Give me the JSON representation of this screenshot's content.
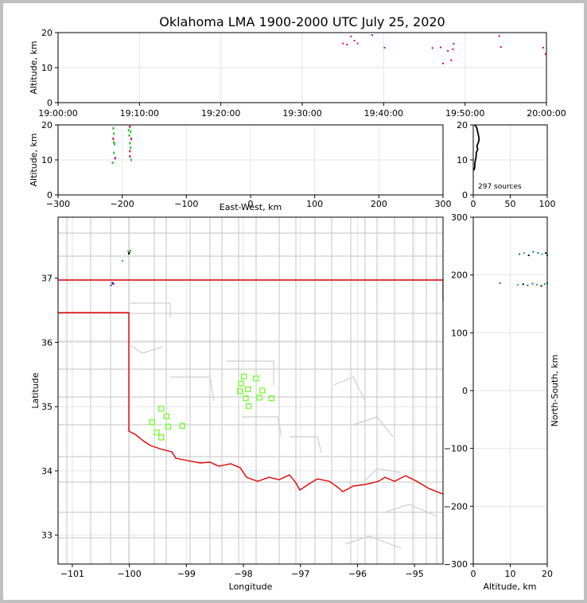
{
  "chart_data": {
    "type": "scatter",
    "title": "Oklahoma LMA 1900-2000 UTC July 25, 2020",
    "colors": {
      "early": "#22c01e",
      "late": "#e0004e",
      "mid": "#6a00b0",
      "border": "#e00000",
      "station": "#7cfc3c",
      "county": "#cfcfcf"
    },
    "panels": {
      "time_altitude": {
        "ylabel": "Altitude, km",
        "ylim": [
          0,
          20
        ],
        "yticks": [
          "0",
          "10",
          "20"
        ],
        "xticks": [
          "19:00:00",
          "19:10:00",
          "19:20:00",
          "19:30:00",
          "19:40:00",
          "19:50:00",
          "20:00:00"
        ],
        "points": [
          {
            "t": 35.0,
            "alt": 16.9
          },
          {
            "t": 35.5,
            "alt": 16.6
          },
          {
            "t": 36.0,
            "alt": 18.9
          },
          {
            "t": 36.4,
            "alt": 17.7
          },
          {
            "t": 36.8,
            "alt": 16.9
          },
          {
            "t": 38.6,
            "alt": 19.3
          },
          {
            "t": 40.1,
            "alt": 15.7
          },
          {
            "t": 46.0,
            "alt": 15.6
          },
          {
            "t": 47.0,
            "alt": 15.8
          },
          {
            "t": 47.3,
            "alt": 11.2
          },
          {
            "t": 47.9,
            "alt": 14.8
          },
          {
            "t": 48.3,
            "alt": 12.1
          },
          {
            "t": 48.5,
            "alt": 15.2
          },
          {
            "t": 48.6,
            "alt": 16.8
          },
          {
            "t": 54.2,
            "alt": 19.0
          },
          {
            "t": 54.4,
            "alt": 15.9
          },
          {
            "t": 59.6,
            "alt": 15.7
          },
          {
            "t": 59.9,
            "alt": 13.9
          }
        ]
      },
      "ew_altitude": {
        "xlabel": "East-West, km",
        "ylabel": "Altitude, km",
        "xlim": [
          -300,
          300
        ],
        "ylim": [
          0,
          20
        ],
        "xticks": [
          "−300",
          "−200",
          "−100",
          "0",
          "100",
          "200",
          "300"
        ],
        "yticks": [
          "0",
          "10",
          "20"
        ],
        "points": [
          {
            "x": -214,
            "alt": 19.0
          },
          {
            "x": -213,
            "alt": 17.5
          },
          {
            "x": -214,
            "alt": 16.0
          },
          {
            "x": -212,
            "alt": 14.5
          },
          {
            "x": -213,
            "alt": 12.0
          },
          {
            "x": -211,
            "alt": 10.5
          },
          {
            "x": -215,
            "alt": 9.2
          },
          {
            "x": -213,
            "alt": 15.0
          },
          {
            "x": -188,
            "alt": 19.5
          },
          {
            "x": -187,
            "alt": 18.0
          },
          {
            "x": -189,
            "alt": 17.0
          },
          {
            "x": -186,
            "alt": 16.0
          },
          {
            "x": -188,
            "alt": 14.8
          },
          {
            "x": -187,
            "alt": 13.5
          },
          {
            "x": -188,
            "alt": 11.0
          },
          {
            "x": -186,
            "alt": 10.0
          },
          {
            "x": -190,
            "alt": 18.5
          },
          {
            "x": -188,
            "alt": 12.5
          }
        ]
      },
      "histogram": {
        "xlim": [
          0,
          100
        ],
        "ylim": [
          0,
          20
        ],
        "xticks": [
          "0",
          "50",
          "100"
        ],
        "yticks": [
          "0",
          "10",
          "20"
        ],
        "source_count": "297 sources",
        "profile": [
          {
            "alt": 7,
            "count": 1
          },
          {
            "alt": 8,
            "count": 2
          },
          {
            "alt": 9,
            "count": 2
          },
          {
            "alt": 10,
            "count": 3
          },
          {
            "alt": 11,
            "count": 4
          },
          {
            "alt": 12,
            "count": 4
          },
          {
            "alt": 13,
            "count": 6
          },
          {
            "alt": 14,
            "count": 5
          },
          {
            "alt": 15,
            "count": 7
          },
          {
            "alt": 16,
            "count": 8
          },
          {
            "alt": 17,
            "count": 7
          },
          {
            "alt": 18,
            "count": 6
          },
          {
            "alt": 19,
            "count": 5
          },
          {
            "alt": 19.5,
            "count": 4
          },
          {
            "alt": 20,
            "count": 2
          }
        ]
      },
      "map": {
        "xlabel": "Longitude",
        "ylabel": "Latitude",
        "xlim": [
          -101.25,
          -94.5
        ],
        "ylim": [
          32.55,
          37.95
        ],
        "xticks": [
          "−101",
          "−100",
          "−99",
          "−98",
          "−97",
          "−96",
          "−95"
        ],
        "yticks": [
          "33",
          "34",
          "35",
          "36",
          "37"
        ],
        "stations": [
          {
            "lon": -97.99,
            "lat": 35.47
          },
          {
            "lon": -98.04,
            "lat": 35.36
          },
          {
            "lon": -97.78,
            "lat": 35.44
          },
          {
            "lon": -97.92,
            "lat": 35.27
          },
          {
            "lon": -98.06,
            "lat": 35.24
          },
          {
            "lon": -97.67,
            "lat": 35.25
          },
          {
            "lon": -97.96,
            "lat": 35.13
          },
          {
            "lon": -97.72,
            "lat": 35.14
          },
          {
            "lon": -97.51,
            "lat": 35.13
          },
          {
            "lon": -97.91,
            "lat": 35.01
          },
          {
            "lon": -99.44,
            "lat": 34.97
          },
          {
            "lon": -99.35,
            "lat": 34.85
          },
          {
            "lon": -99.6,
            "lat": 34.76
          },
          {
            "lon": -99.32,
            "lat": 34.69
          },
          {
            "lon": -99.07,
            "lat": 34.7
          },
          {
            "lon": -99.52,
            "lat": 34.6
          },
          {
            "lon": -99.44,
            "lat": 34.52
          }
        ],
        "sources": [
          {
            "lon": -100.3,
            "lat": 36.93
          },
          {
            "lon": -100.28,
            "lat": 36.91
          },
          {
            "lon": -100.32,
            "lat": 36.89
          },
          {
            "lon": -100.29,
            "lat": 36.92
          },
          {
            "lon": -100.02,
            "lat": 37.42
          },
          {
            "lon": -100.0,
            "lat": 37.4
          },
          {
            "lon": -99.98,
            "lat": 37.43
          },
          {
            "lon": -100.01,
            "lat": 37.38
          },
          {
            "lon": -100.12,
            "lat": 37.27
          }
        ]
      },
      "ns_altitude": {
        "xlabel": "Altitude, km",
        "ylabel": "North-South, km",
        "xlim": [
          0,
          20
        ],
        "ylim": [
          -300,
          300
        ],
        "xticks": [
          "0",
          "10",
          "20"
        ],
        "yticks": [
          "−300",
          "−200",
          "−100",
          "0",
          "100",
          "200",
          "300"
        ],
        "points": [
          {
            "alt": 12.5,
            "ns": 236
          },
          {
            "alt": 13.8,
            "ns": 238
          },
          {
            "alt": 15.0,
            "ns": 234
          },
          {
            "alt": 16.2,
            "ns": 240
          },
          {
            "alt": 17.5,
            "ns": 238
          },
          {
            "alt": 18.6,
            "ns": 236
          },
          {
            "alt": 19.6,
            "ns": 238
          },
          {
            "alt": 20.0,
            "ns": 234
          },
          {
            "alt": 7.2,
            "ns": 186
          },
          {
            "alt": 12.0,
            "ns": 183
          },
          {
            "alt": 13.5,
            "ns": 184
          },
          {
            "alt": 14.7,
            "ns": 182
          },
          {
            "alt": 16.0,
            "ns": 185
          },
          {
            "alt": 17.2,
            "ns": 183
          },
          {
            "alt": 18.4,
            "ns": 181
          },
          {
            "alt": 19.3,
            "ns": 184
          },
          {
            "alt": 20.0,
            "ns": 186
          }
        ]
      }
    }
  }
}
